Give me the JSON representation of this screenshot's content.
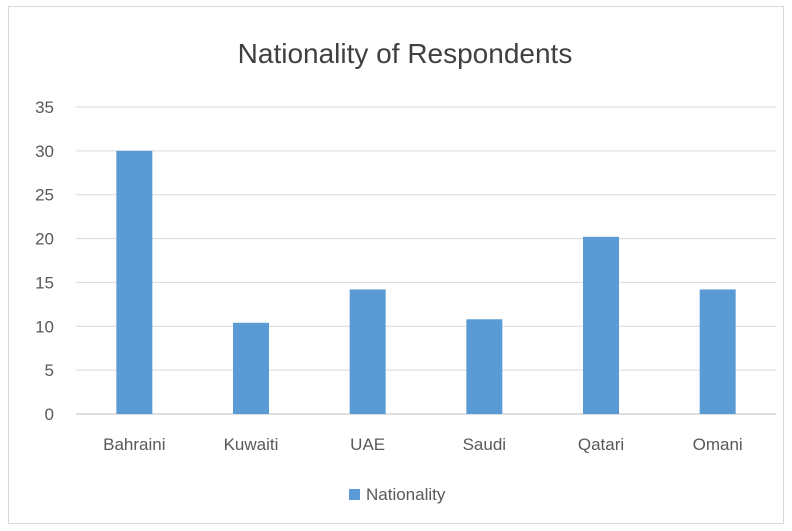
{
  "chart_data": {
    "type": "bar",
    "title": "Nationality of Respondents",
    "categories": [
      "Bahraini",
      "Kuwaiti",
      "UAE",
      "Saudi",
      "Qatari",
      "Omani"
    ],
    "series": [
      {
        "name": "Nationality",
        "values": [
          30,
          10.4,
          14.2,
          10.8,
          20.2,
          14.2
        ],
        "color": "#5b9bd5"
      }
    ],
    "ylim": [
      0,
      35
    ],
    "yticks": [
      "0",
      "5",
      "10",
      "15",
      "20",
      "25",
      "30",
      "35"
    ],
    "grid": true,
    "legend_position": "bottom"
  }
}
